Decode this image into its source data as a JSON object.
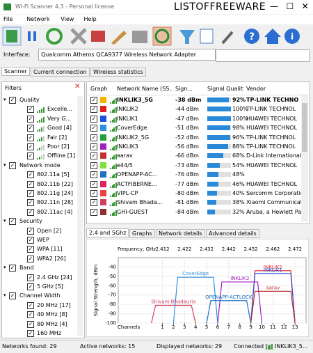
{
  "window": {
    "title": "Wi-Fi Scanner 4.3 - Personal license",
    "watermark": "LISTOFFREEWARE"
  },
  "menu": [
    "File",
    "Network",
    "View",
    "Help"
  ],
  "interface": {
    "label": "Interface:",
    "value": "Qualcomm Atheros QCA9377 Wireless Network Adapter"
  },
  "tabs": [
    "Scanner",
    "Current connection",
    "Wireless statistics"
  ],
  "filters": {
    "title": "Filters",
    "groups": [
      {
        "name": "Quality",
        "items": [
          "Excelle...",
          "Very G...",
          "Good [4]",
          "Fair [2]",
          "Poor [2]",
          "Offline [1]"
        ]
      },
      {
        "name": "Network mode",
        "items": [
          "802.11a [5]",
          "802.11b [22]",
          "802.11g [24]",
          "802.11n [28]",
          "802.11ac [4]"
        ]
      },
      {
        "name": "Security",
        "items": [
          "Open [2]",
          "WEP",
          "WPA [11]",
          "WPA2 [26]"
        ]
      },
      {
        "name": "Band",
        "items": [
          "2.4 GHz [24]",
          "5 GHz [5]"
        ]
      },
      {
        "name": "Channel Width",
        "items": [
          "20 MHz [17]",
          "40 MHz [8]",
          "80 MHz [4]",
          "160 MHz"
        ]
      }
    ]
  },
  "table": {
    "columns": [
      "Graph",
      "Network Name (SS...",
      "Sign...",
      "Signal Quality",
      "Vendor"
    ],
    "rows": [
      {
        "color": "#f2b400",
        "name": "INKLIK3_5G",
        "signal": "-38 dBm",
        "quality": "92%",
        "vendor": "TP-LINK TECHNO"
      },
      {
        "color": "#e02020",
        "name": "INKLIK2",
        "signal": "-44 dBm",
        "quality": "100%",
        "vendor": "TP-LINK TECHNOL"
      },
      {
        "color": "#2050e0",
        "name": "INKLIK1",
        "signal": "-47 dBm",
        "quality": "100%",
        "vendor": "HUAWEI TECHNOL"
      },
      {
        "color": "#3090e0",
        "name": "CoverEdge",
        "signal": "-51 dBm",
        "quality": "98%",
        "vendor": "HUAWEI TECHNOL"
      },
      {
        "color": "#20a040",
        "name": "INKLIK2_5G",
        "signal": "-52 dBm",
        "quality": "96%",
        "vendor": "TP-LINK TECHNOL"
      },
      {
        "color": "#a020c0",
        "name": "INKLIK3",
        "signal": "-56 dBm",
        "quality": "88%",
        "vendor": "TP-LINK TECHNOL"
      },
      {
        "color": "#c03030",
        "name": "aarav",
        "signal": "-66 dBm",
        "quality": "68%",
        "vendor": "D-Link International"
      },
      {
        "color": "#80e040",
        "name": "e44/5",
        "signal": "-73 dBm",
        "quality": "54%",
        "vendor": "HUAWEI TECHNOL"
      },
      {
        "color": "#2070c0",
        "name": "OPENAPP-AC...",
        "signal": "-76 dBm",
        "quality": "48%",
        "vendor": null
      },
      {
        "color": "#e02060",
        "name": "ACTFIBERNE...",
        "signal": "-77 dBm",
        "quality": "46%",
        "vendor": "HUAWEI TECHNOL"
      },
      {
        "color": "#f04040",
        "name": "VIPL-CP",
        "signal": "-80 dBm",
        "quality": "40%",
        "vendor": "Sercomm Corporation"
      },
      {
        "color": "#d04060",
        "name": "Shivam Bhada...",
        "signal": "-81 dBm",
        "quality": "38%",
        "vendor": "Xiaomi Communicati"
      },
      {
        "color": "#903030",
        "name": "GHI-GUEST",
        "signal": "-84 dBm",
        "quality": "32%",
        "vendor": "Aruba, a Hewlett Pac"
      }
    ]
  },
  "bottom_tabs": [
    "2.4 and 5Ghz",
    "Graphs",
    "Network details",
    "Advanced details"
  ],
  "chart_data": {
    "type": "channel-area",
    "x_label": "Frequency, GHz",
    "y_label": "Signal Strength, dBm",
    "channel_label": "Channels",
    "xlim": [
      -3,
      14
    ],
    "ylim": [
      -100,
      -30
    ],
    "yticks": [
      -40,
      -50,
      -60,
      -70,
      -80,
      -90,
      -100
    ],
    "xticks": [
      1,
      2,
      3,
      4,
      5,
      6,
      7,
      8,
      9,
      10,
      11,
      12,
      13
    ],
    "freq_ticks": [
      {
        "value": 1,
        "label": "2.412"
      },
      {
        "value": 3,
        "label": "2.422"
      },
      {
        "value": 5,
        "label": "2.432"
      },
      {
        "value": 7,
        "label": "2.442"
      },
      {
        "value": 9,
        "label": "2.452"
      },
      {
        "value": 11,
        "label": "2.462"
      },
      {
        "value": 13,
        "label": "2.472"
      }
    ],
    "series": [
      {
        "name": "INKLIK2",
        "color": "#e02020",
        "channel": 11,
        "signal": -44
      },
      {
        "name": "INKLIK1",
        "color": "#2050e0",
        "channel": 11,
        "signal": -47
      },
      {
        "name": "CoverEdge",
        "color": "#3090e0",
        "channel": 4,
        "signal": -51
      },
      {
        "name": "INKLIK3",
        "color": "#a020c0",
        "channel": 8,
        "signal": -56
      },
      {
        "name": "aarav",
        "color": "#c03030",
        "channel": 11,
        "signal": -66
      },
      {
        "name": "OPENAPP-ACTLOCK",
        "color": "#2070c0",
        "channel": 7,
        "signal": -76
      },
      {
        "name": "Shivam Bhadauria",
        "color": "#d04060",
        "channel": 2,
        "signal": -81
      }
    ]
  },
  "status": {
    "found": "Networks found: 29",
    "active": "Active networks: 15",
    "displayed": "Displayed networks: 29",
    "connected": "Connected to:",
    "ssid": "INKLIK3_5..."
  }
}
